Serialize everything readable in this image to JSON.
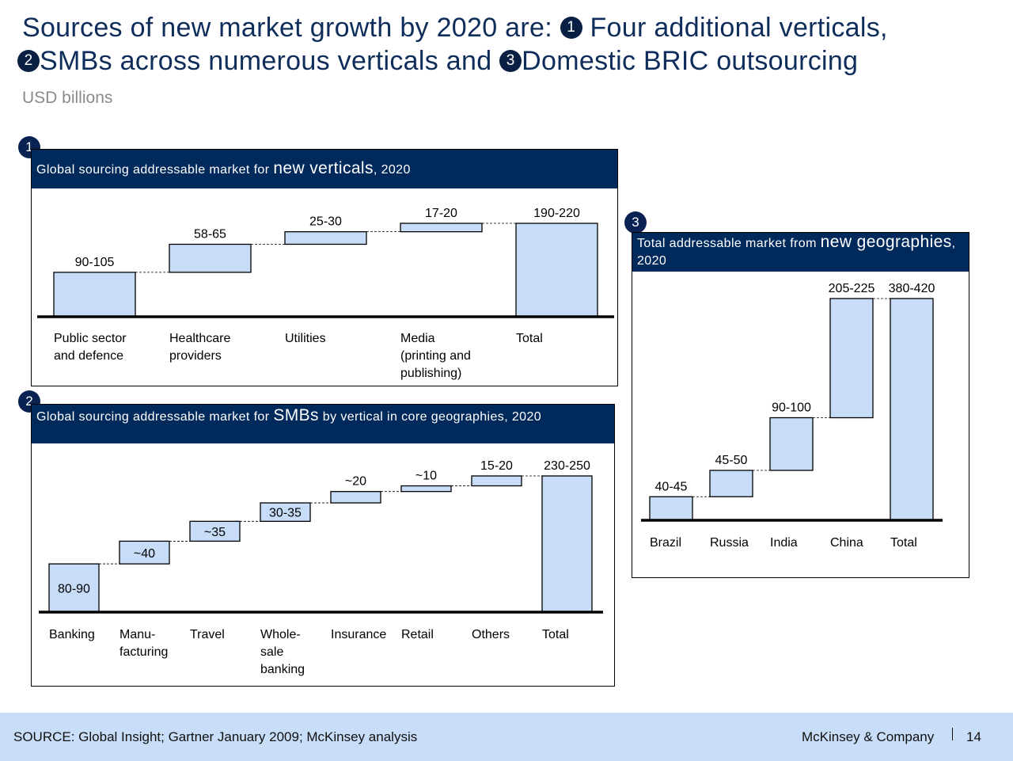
{
  "header": {
    "title_line1_a": "Sources of new market growth by 2020 are:",
    "title_line1_b": "Four additional verticals,",
    "title_line2_a": "SMBs across numerous verticals and",
    "title_line2_b": "Domestic BRIC outsourcing",
    "marker1": "1",
    "marker2": "2",
    "marker3": "3",
    "subtitle": "USD billions"
  },
  "panels": {
    "verticals": {
      "badge": "1",
      "title_pre": "Global sourcing addressable market for",
      "title_big": "new verticals",
      "title_post": ", 2020"
    },
    "smb": {
      "badge": "2",
      "title_pre": "Global sourcing addressable market for",
      "title_big": "SMBs",
      "title_post": "by vertical in core geographies, 2020"
    },
    "geo": {
      "badge": "3",
      "title_pre": "Total addressable market from",
      "title_big": "new geographies",
      "title_post": ", 2020"
    }
  },
  "chart_data": [
    {
      "type": "bar",
      "subtype": "waterfall",
      "categories": [
        [
          "Public sector",
          "and defence"
        ],
        [
          "Healthcare",
          "providers"
        ],
        [
          "Utilities"
        ],
        [
          "Media",
          "(printing and",
          "publishing)"
        ],
        [
          "Total"
        ]
      ],
      "ranges": [
        [
          90,
          105
        ],
        [
          58,
          65
        ],
        [
          25,
          30
        ],
        [
          17,
          20
        ],
        [
          190,
          220
        ]
      ],
      "labels": [
        "90-105",
        "58-65",
        "25-30",
        "17-20",
        "190-220"
      ],
      "values": [
        97.5,
        61.5,
        27.5,
        18.5,
        205
      ],
      "total_index": 4,
      "bar_color": "#c6dcf7"
    },
    {
      "type": "bar",
      "subtype": "waterfall",
      "categories": [
        [
          "Banking"
        ],
        [
          "Manu-",
          "facturing"
        ],
        [
          "Travel"
        ],
        [
          "Whole-",
          "sale",
          "banking"
        ],
        [
          "Insurance"
        ],
        [
          "Retail"
        ],
        [
          "Others"
        ],
        [
          "Total"
        ]
      ],
      "ranges": [
        [
          80,
          90
        ],
        [
          40,
          40
        ],
        [
          35,
          35
        ],
        [
          30,
          35
        ],
        [
          20,
          20
        ],
        [
          10,
          10
        ],
        [
          15,
          20
        ],
        [
          230,
          250
        ]
      ],
      "labels": [
        "80-90",
        "~40",
        "~35",
        "30-35",
        "~20",
        "~10",
        "15-20",
        "230-250"
      ],
      "values": [
        85,
        40,
        35,
        32.5,
        20,
        10,
        17.5,
        240
      ],
      "total_index": 7,
      "bar_color": "#c6dcf7"
    },
    {
      "type": "bar",
      "subtype": "waterfall",
      "categories": [
        [
          "Brazil"
        ],
        [
          "Russia"
        ],
        [
          "India"
        ],
        [
          "China"
        ],
        [
          "Total"
        ]
      ],
      "ranges": [
        [
          40,
          45
        ],
        [
          45,
          50
        ],
        [
          90,
          100
        ],
        [
          205,
          225
        ],
        [
          380,
          420
        ]
      ],
      "labels": [
        "40-45",
        "45-50",
        "90-100",
        "205-225",
        "380-420"
      ],
      "values": [
        42.5,
        47.5,
        95,
        215,
        400
      ],
      "total_index": 4,
      "bar_color": "#c6dcf7"
    }
  ],
  "footer": {
    "source": "SOURCE: Global Insight; Gartner January 2009; McKinsey analysis",
    "brand": "McKinsey & Company",
    "page": "14"
  }
}
